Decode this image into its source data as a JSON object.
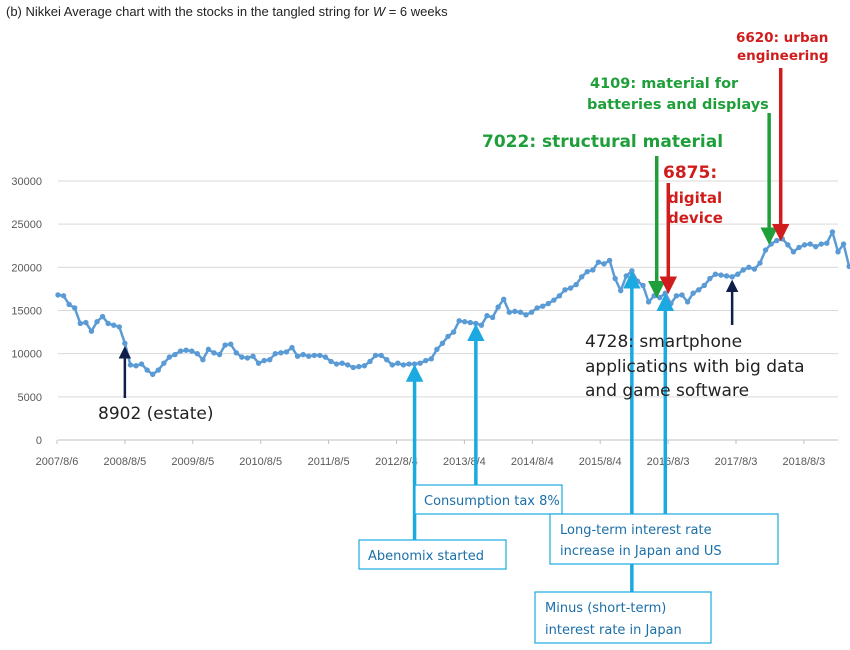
{
  "title_prefix": "(b) Nikkei Average chart with the stocks in the tangled string for ",
  "title_var": "W",
  "title_suffix": " = 6 weeks",
  "colors": {
    "line": "#5b9bd5",
    "grid": "#d9d9d9",
    "axis": "#bfbfbf",
    "navy": "#0f1f4a",
    "cyan": "#1aa9e0",
    "green": "#1f9f3a",
    "red": "#d01c1c"
  },
  "chart_data": {
    "type": "line",
    "y_ticks": [
      "0",
      "5000",
      "10000",
      "15000",
      "20000",
      "25000",
      "30000"
    ],
    "ylim": [
      0,
      30000
    ],
    "x_tick_labels": [
      "2007/8/6",
      "2008/8/5",
      "2009/8/5",
      "2010/8/5",
      "2011/8/5",
      "2012/8/4",
      "2013/8/4",
      "2014/8/4",
      "2015/8/4",
      "2016/8/3",
      "2017/8/3",
      "2018/8/3"
    ],
    "x_index_range": [
      0,
      140
    ],
    "grid": true,
    "series": [
      {
        "values": [
          16800,
          16700,
          15700,
          15300,
          13500,
          13600,
          12600,
          13700,
          14300,
          13500,
          13300,
          13100,
          11200,
          8700,
          8600,
          8800,
          8100,
          7600,
          8100,
          8900,
          9600,
          9900,
          10300,
          10400,
          10300,
          10000,
          9300,
          10500,
          10100,
          9900,
          11000,
          11100,
          10100,
          9600,
          9500,
          9700,
          8900,
          9200,
          9300,
          10000,
          10100,
          10200,
          10700,
          9700,
          9900,
          9700,
          9800,
          9800,
          9600,
          9100,
          8800,
          8900,
          8700,
          8400,
          8500,
          8600,
          9100,
          9800,
          9800,
          9300,
          8700,
          8900,
          8700,
          8800,
          8800,
          8900,
          9200,
          9400,
          10500,
          11200,
          12000,
          12500,
          13800,
          13700,
          13600,
          13500,
          13300,
          14400,
          14200,
          15400,
          16300,
          14800,
          14900,
          14800,
          14500,
          14800,
          15300,
          15500,
          15800,
          16200,
          16700,
          17400,
          17600,
          18000,
          18900,
          19500,
          19700,
          20600,
          20400,
          20800,
          18700,
          17300,
          19000,
          19600,
          18400,
          17900,
          16000,
          16700,
          16500,
          17000,
          15800,
          16700,
          16800,
          16000,
          17000,
          17400,
          17900,
          18700,
          19200,
          19100,
          19000,
          18900,
          19200,
          19700,
          20000,
          19800,
          20500,
          22000,
          22700,
          23100,
          23300,
          22600,
          21800,
          22300,
          22600,
          22700,
          22400,
          22700,
          22800,
          24100,
          21800,
          22700,
          20100,
          20400
        ]
      }
    ],
    "annotations": [
      {
        "id": "a8902",
        "label": "8902 (estate)",
        "x": 12,
        "color": "navy"
      },
      {
        "id": "abenomix",
        "label": "Abenomix started",
        "x": 64,
        "color": "cyan"
      },
      {
        "id": "consumption",
        "label": "Consumption tax 8%",
        "x": 75,
        "color": "cyan"
      },
      {
        "id": "minus",
        "label": [
          "Minus (short-term)",
          "interest rate  in Japan"
        ],
        "x": 103,
        "color": "cyan"
      },
      {
        "id": "longterm",
        "label": [
          "Long-term interest rate",
          "increase in Japan and US"
        ],
        "x": 109,
        "color": "cyan"
      },
      {
        "id": "a4728",
        "label": [
          "4728: smartphone",
          "applications with big data",
          "and game software"
        ],
        "x": 121,
        "color": "navy"
      },
      {
        "id": "a7022",
        "label": "7022: structural material",
        "x": 108,
        "color": "green"
      },
      {
        "id": "a6875",
        "label": [
          "6875:",
          "digital",
          "device"
        ],
        "x": 109,
        "color": "red"
      },
      {
        "id": "a4109",
        "label": [
          "4109: material for",
          "batteries and displays"
        ],
        "x": 128,
        "color": "green"
      },
      {
        "id": "a6620",
        "label": [
          "6620: urban",
          "engineering"
        ],
        "x": 129,
        "color": "red"
      }
    ]
  }
}
